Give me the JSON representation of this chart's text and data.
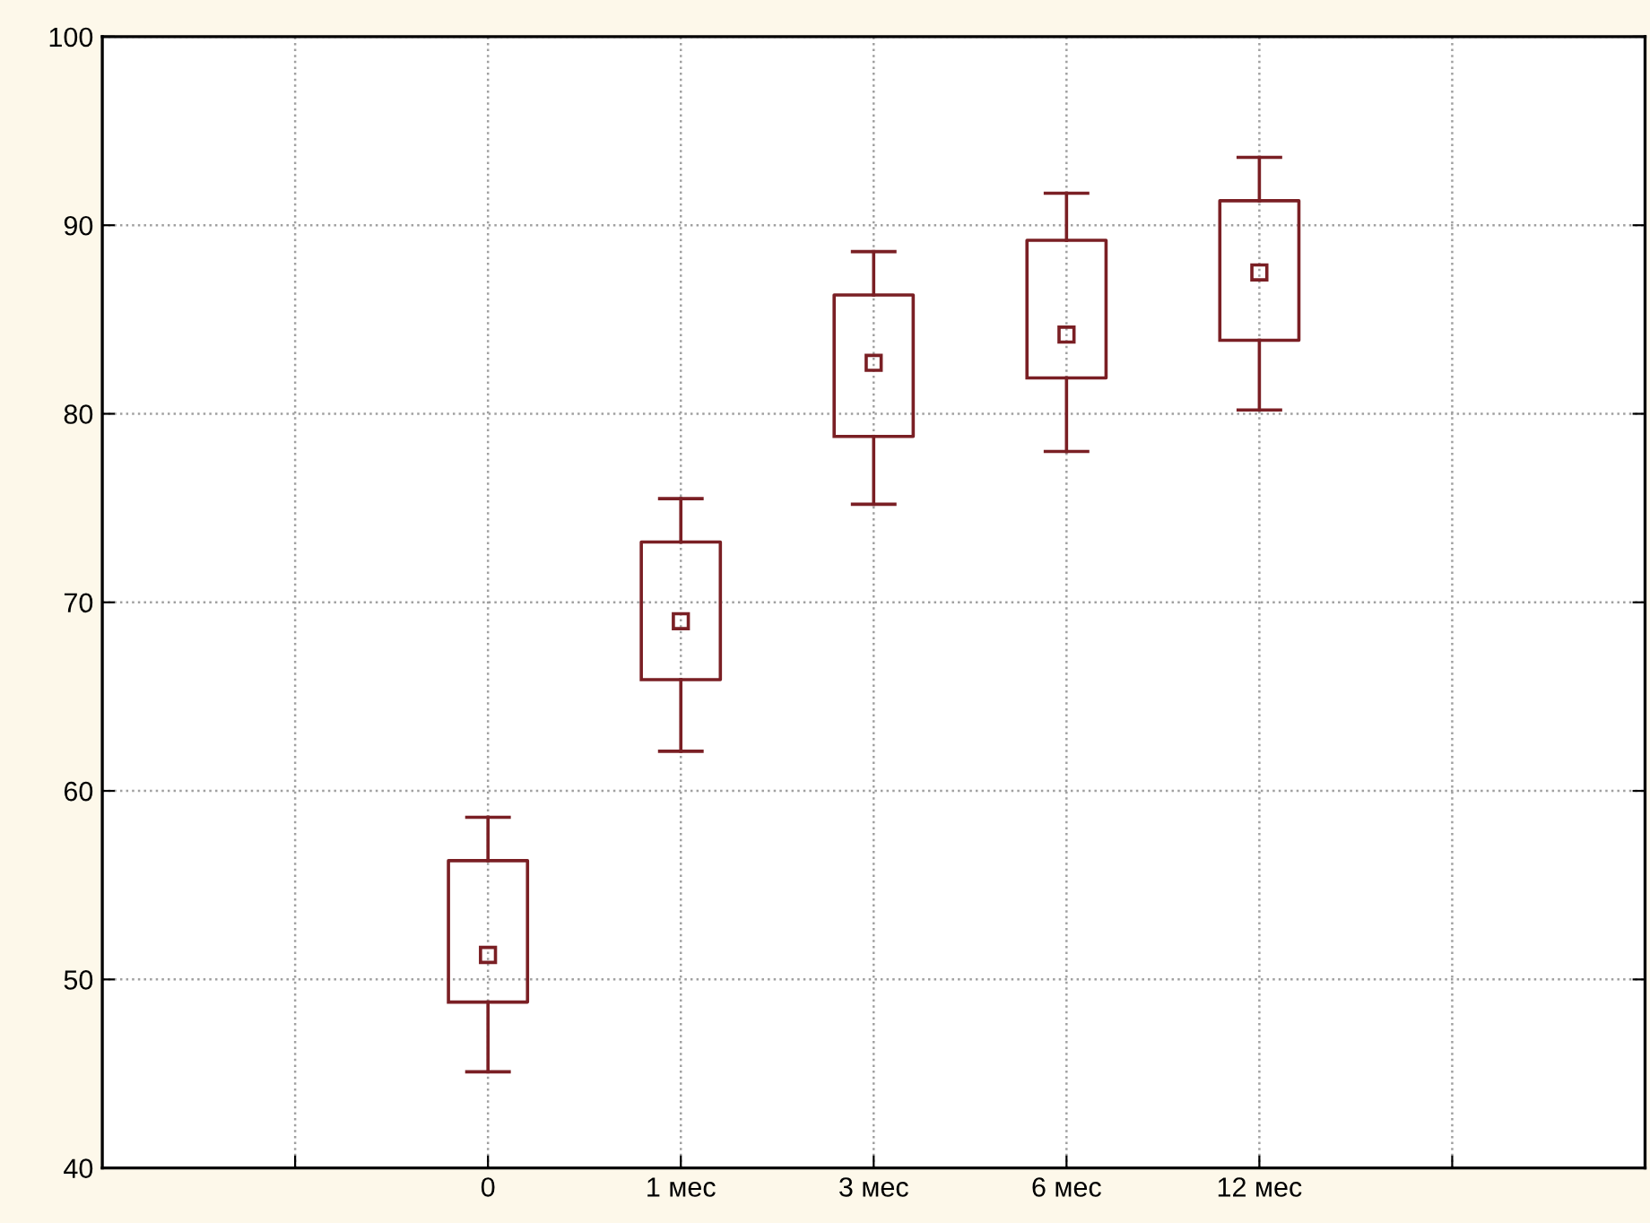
{
  "chart_data": {
    "type": "box",
    "categories": [
      null,
      "0",
      "1 мес",
      "3 мес",
      "6 мес",
      "12 мес",
      null
    ],
    "boxes": [
      null,
      {
        "low": 45.1,
        "q1": 48.8,
        "median": 51.3,
        "q3": 56.3,
        "high": 58.6
      },
      {
        "low": 62.1,
        "q1": 65.9,
        "median": 69.0,
        "q3": 73.2,
        "high": 75.5
      },
      {
        "low": 75.2,
        "q1": 78.8,
        "median": 82.7,
        "q3": 86.3,
        "high": 88.6
      },
      {
        "low": 78.0,
        "q1": 81.9,
        "median": 84.2,
        "q3": 89.2,
        "high": 91.7
      },
      {
        "low": 80.2,
        "q1": 83.9,
        "median": 87.5,
        "q3": 91.3,
        "high": 93.6
      },
      null
    ],
    "color": "#7a1f24",
    "marker": "square",
    "ylim": [
      40,
      100
    ],
    "yticks": [
      40,
      50,
      60,
      70,
      80,
      90,
      100
    ],
    "grid": true,
    "legend": false
  }
}
